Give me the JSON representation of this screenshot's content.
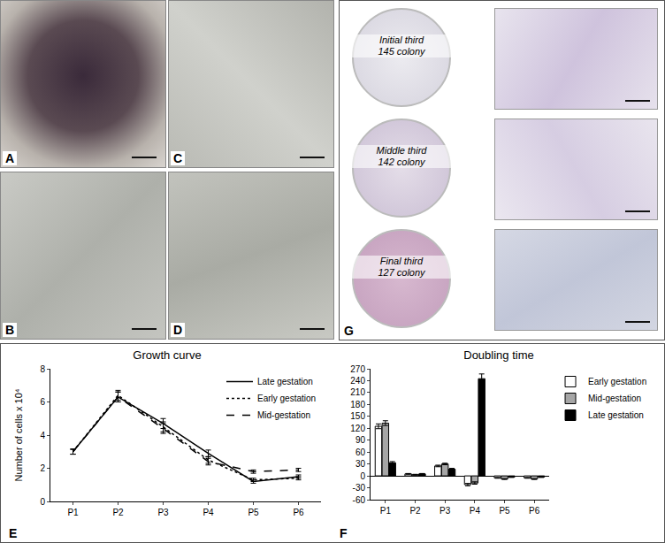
{
  "photo_labels": [
    "A",
    "B",
    "C",
    "D"
  ],
  "colony_panel": {
    "label": "G",
    "rows": [
      {
        "name": "Initial third",
        "count": "145 colony"
      },
      {
        "name": "Middle third",
        "count": "142 colony"
      },
      {
        "name": "Final third",
        "count": "127 colony"
      }
    ]
  },
  "chart_data": [
    {
      "label": "E",
      "type": "line",
      "title": "Growth curve",
      "y_label": "Number of cells x 10⁴",
      "categories": [
        "P1",
        "P2",
        "P3",
        "P4",
        "P5",
        "P6"
      ],
      "ylim": [
        0,
        8
      ],
      "yticks": [
        0,
        2,
        4,
        6,
        8
      ],
      "grid": false,
      "legend": "top right",
      "series": [
        {
          "name": "Late gestation",
          "color": "#000000",
          "line_style": "solid",
          "values": [
            3.0,
            6.3,
            4.7,
            2.9,
            1.2,
            1.5
          ],
          "errors": [
            0.15,
            0.3,
            0.3,
            0.2,
            0.1,
            0.1
          ]
        },
        {
          "name": "Early gestation",
          "color": "#000000",
          "line_style": "dot",
          "values": [
            3.0,
            6.4,
            4.5,
            2.5,
            1.3,
            1.4
          ],
          "errors": [
            0.15,
            0.3,
            0.3,
            0.2,
            0.1,
            0.1
          ]
        },
        {
          "name": "Mid-gestation",
          "color": "#000000",
          "line_style": "dash",
          "values": [
            3.0,
            6.3,
            4.4,
            2.4,
            1.8,
            1.9
          ],
          "errors": [
            0.15,
            0.3,
            0.3,
            0.2,
            0.1,
            0.1
          ]
        }
      ]
    },
    {
      "label": "F",
      "type": "bar",
      "title": "Doubling time",
      "categories": [
        "P1",
        "P2",
        "P3",
        "P4",
        "P5",
        "P6"
      ],
      "ylim": [
        -60,
        270
      ],
      "yticks": [
        -60,
        -30,
        0,
        30,
        60,
        90,
        120,
        150,
        180,
        210,
        240,
        270
      ],
      "grid": false,
      "legend": "right",
      "series": [
        {
          "name": "Early gestation",
          "color": "#ffffff",
          "values": [
            125,
            5,
            25,
            -22,
            -5,
            -5
          ],
          "errors": [
            6,
            1,
            2,
            3,
            1,
            1
          ]
        },
        {
          "name": "Mid-gestation",
          "color": "#a6a6a6",
          "values": [
            133,
            3,
            30,
            -18,
            -8,
            -8
          ],
          "errors": [
            6,
            1,
            2,
            3,
            1,
            1
          ]
        },
        {
          "name": "Late gestation",
          "color": "#000000",
          "values": [
            33,
            5,
            17,
            245,
            -3,
            -3
          ],
          "errors": [
            3,
            1,
            2,
            12,
            1,
            1
          ]
        }
      ]
    }
  ]
}
